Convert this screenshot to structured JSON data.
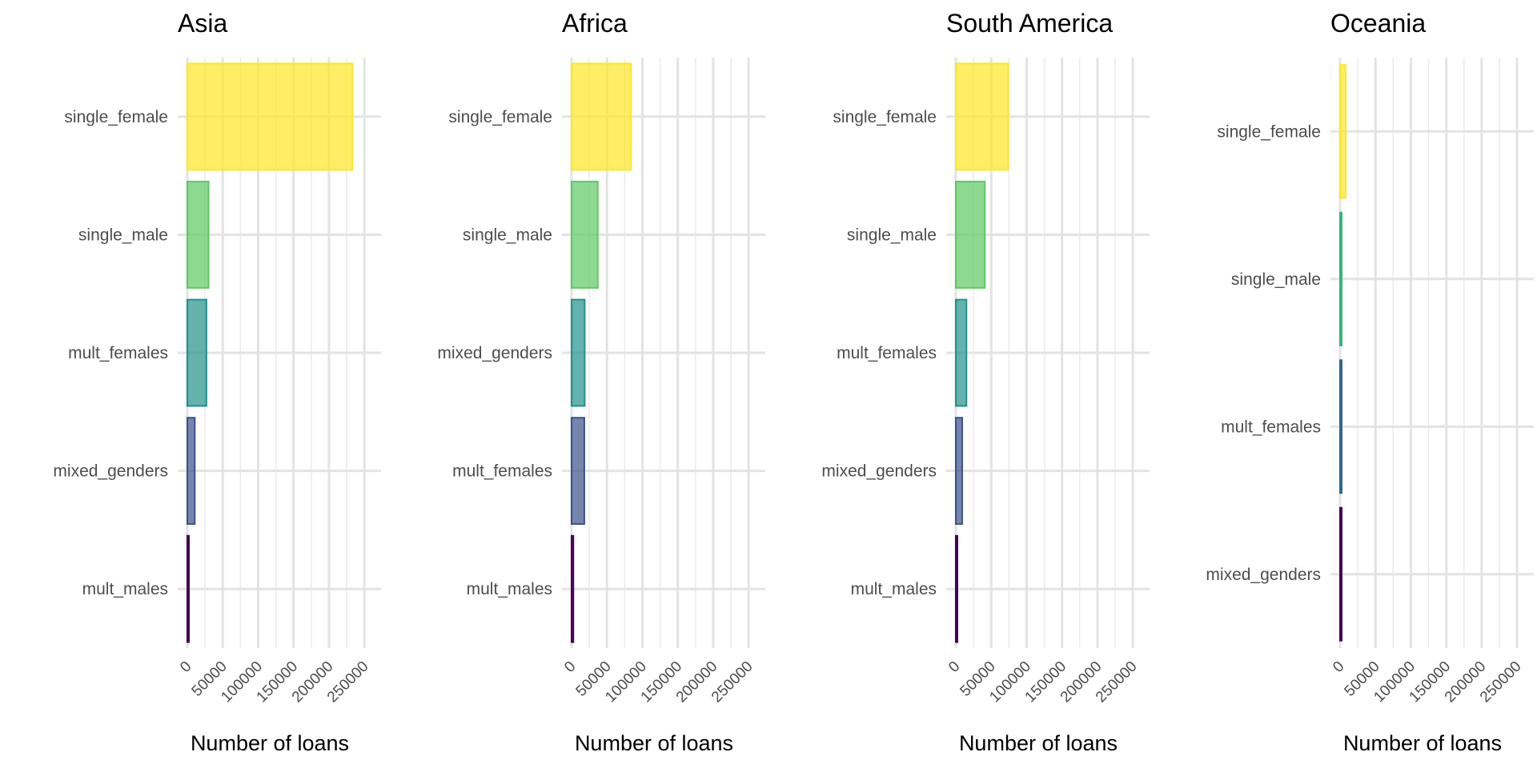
{
  "chart_data": [
    {
      "type": "bar",
      "title": "Asia",
      "xlabel": "Number of loans",
      "ylabel": "",
      "xlim": [
        0,
        260000
      ],
      "xticks": [
        "0",
        "50000",
        "100000",
        "150000",
        "200000",
        "250000"
      ],
      "xtick_values": [
        0,
        50000,
        100000,
        150000,
        200000,
        250000
      ],
      "categories": [
        "single_female",
        "single_male",
        "mult_females",
        "mixed_genders",
        "mult_males"
      ],
      "values": [
        233000,
        30000,
        27000,
        10500,
        1500
      ],
      "colors": [
        "#FDE725",
        "#5EC962",
        "#21918C",
        "#3B528B",
        "#440154"
      ],
      "grid": true
    },
    {
      "type": "bar",
      "title": "Africa",
      "xlabel": "Number of loans",
      "ylabel": "",
      "xlim": [
        0,
        260000
      ],
      "xticks": [
        "0",
        "50000",
        "100000",
        "150000",
        "200000",
        "250000"
      ],
      "xtick_values": [
        0,
        50000,
        100000,
        150000,
        200000,
        250000
      ],
      "categories": [
        "single_female",
        "single_male",
        "mixed_genders",
        "mult_females",
        "mult_males"
      ],
      "values": [
        84000,
        37000,
        18500,
        18000,
        2500
      ],
      "colors": [
        "#FDE725",
        "#5EC962",
        "#21918C",
        "#3B528B",
        "#440154"
      ],
      "grid": true
    },
    {
      "type": "bar",
      "title": "South America",
      "xlabel": "Number of loans",
      "ylabel": "",
      "xlim": [
        0,
        260000
      ],
      "xticks": [
        "0",
        "50000",
        "100000",
        "150000",
        "200000",
        "250000"
      ],
      "xtick_values": [
        0,
        50000,
        100000,
        150000,
        200000,
        250000
      ],
      "categories": [
        "single_female",
        "single_male",
        "mult_females",
        "mixed_genders",
        "mult_males"
      ],
      "values": [
        74000,
        41000,
        15000,
        9000,
        1500
      ],
      "colors": [
        "#FDE725",
        "#5EC962",
        "#21918C",
        "#3B528B",
        "#440154"
      ],
      "grid": true
    },
    {
      "type": "bar",
      "title": "Oceania",
      "xlabel": "Number of loans",
      "ylabel": "",
      "xlim": [
        0,
        260000
      ],
      "xticks": [
        "0",
        "50000",
        "100000",
        "150000",
        "200000",
        "250000"
      ],
      "xtick_values": [
        0,
        50000,
        100000,
        150000,
        200000,
        250000
      ],
      "categories": [
        "single_female",
        "single_male",
        "mult_females",
        "mixed_genders"
      ],
      "values": [
        8000,
        1500,
        1200,
        800
      ],
      "colors": [
        "#FDE725",
        "#35B779",
        "#31688E",
        "#440154"
      ],
      "grid": true
    }
  ]
}
